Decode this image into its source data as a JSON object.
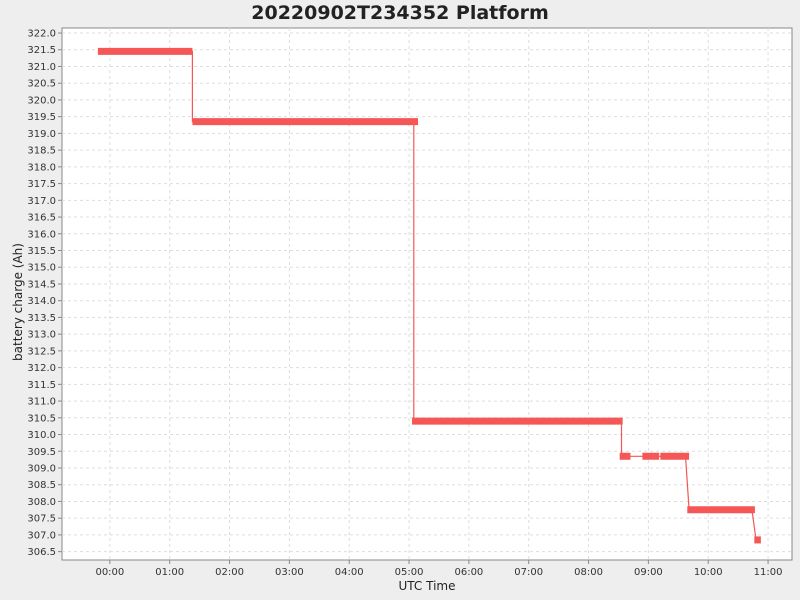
{
  "chart_data": {
    "type": "line",
    "title": "20220902T234352 Platform",
    "xlabel": "UTC Time",
    "ylabel": "battery charge (Ah)",
    "x_unit": "hours (UTC)",
    "xlim": [
      -0.8,
      11.4
    ],
    "ylim": [
      306.25,
      322.15
    ],
    "x_tick_values": [
      0,
      1,
      2,
      3,
      4,
      5,
      6,
      7,
      8,
      9,
      10,
      11
    ],
    "x_ticks": [
      "00:00",
      "01:00",
      "02:00",
      "03:00",
      "04:00",
      "05:00",
      "06:00",
      "07:00",
      "08:00",
      "09:00",
      "10:00",
      "11:00"
    ],
    "y_ticks": [
      "306.5",
      "307.0",
      "307.5",
      "308.0",
      "308.5",
      "309.0",
      "309.5",
      "310.0",
      "310.5",
      "311.0",
      "311.5",
      "312.0",
      "312.5",
      "313.0",
      "313.5",
      "314.0",
      "314.5",
      "315.0",
      "315.5",
      "316.0",
      "316.5",
      "317.0",
      "317.5",
      "318.0",
      "318.5",
      "319.0",
      "319.5",
      "320.0",
      "320.5",
      "321.0",
      "321.5",
      "322.0"
    ],
    "grid": true,
    "line_color": "#f55656",
    "series": [
      {
        "line": [
          [
            -0.2,
            321.45
          ],
          [
            1.38,
            321.45
          ],
          [
            1.38,
            319.35
          ],
          [
            5.08,
            319.35
          ],
          [
            5.08,
            310.4
          ],
          [
            8.55,
            310.4
          ],
          [
            8.55,
            309.35
          ],
          [
            8.62,
            309.35
          ],
          [
            8.92,
            309.35
          ],
          [
            9.62,
            309.35
          ],
          [
            9.68,
            307.75
          ],
          [
            10.73,
            307.75
          ],
          [
            10.8,
            306.85
          ]
        ],
        "segments": [
          [
            -0.2,
            1.38,
            321.45
          ],
          [
            1.38,
            5.15,
            319.35
          ],
          [
            5.05,
            8.57,
            310.4
          ],
          [
            8.52,
            8.7,
            309.35
          ],
          [
            8.9,
            9.18,
            309.35
          ],
          [
            9.2,
            9.68,
            309.35
          ],
          [
            9.65,
            10.78,
            307.75
          ],
          [
            10.77,
            10.88,
            306.85
          ]
        ]
      }
    ]
  }
}
